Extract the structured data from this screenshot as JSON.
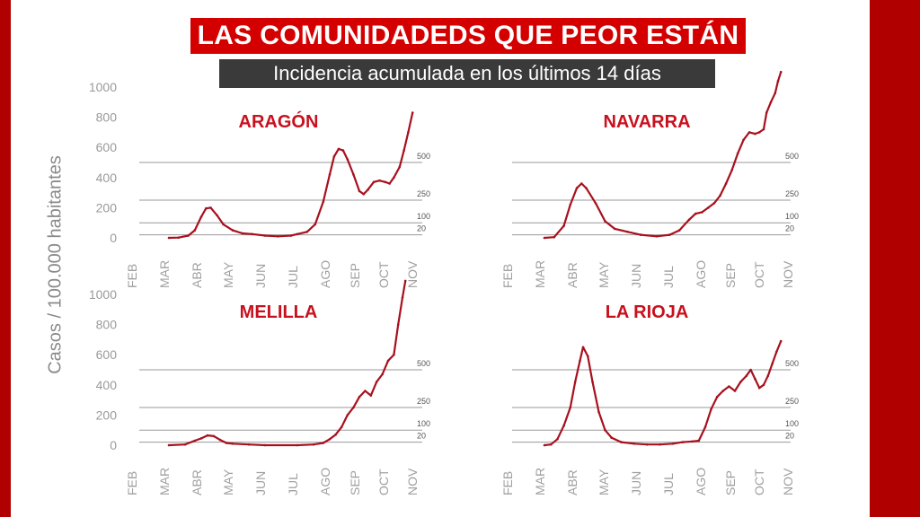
{
  "header": {
    "title": "LAS COMUNIDADEDS QUE PEOR ESTÁN",
    "subtitle": "Incidencia acumulada en los últimos 14 días"
  },
  "y_axis_label": "Casos / 100.000 habitantes",
  "colors": {
    "line": "#a8101e",
    "title_bg": "#d40000",
    "subtitle_bg": "#3a3a3a",
    "frame": "#b00000"
  },
  "chart_data": [
    {
      "type": "line",
      "title": "ARAGÓN",
      "x_ticks": [
        "FEB",
        "MAR",
        "ABR",
        "MAY",
        "JUN",
        "JUL",
        "AGO",
        "SEP",
        "OCT",
        "NOV"
      ],
      "y_ticks": [
        0,
        200,
        400,
        600,
        800,
        1000
      ],
      "reference_lines": [
        500,
        250,
        100,
        20
      ],
      "grid": false,
      "series": [
        {
          "values": [
            [
              1.0,
              0
            ],
            [
              1.3,
              2
            ],
            [
              1.6,
              15
            ],
            [
              1.8,
              50
            ],
            [
              2.0,
              140
            ],
            [
              2.15,
              195
            ],
            [
              2.3,
              200
            ],
            [
              2.5,
              150
            ],
            [
              2.7,
              90
            ],
            [
              3.0,
              50
            ],
            [
              3.3,
              30
            ],
            [
              3.6,
              25
            ],
            [
              4.0,
              15
            ],
            [
              4.4,
              10
            ],
            [
              4.8,
              15
            ],
            [
              5.0,
              25
            ],
            [
              5.3,
              40
            ],
            [
              5.55,
              90
            ],
            [
              5.8,
              240
            ],
            [
              6.0,
              420
            ],
            [
              6.15,
              540
            ],
            [
              6.3,
              590
            ],
            [
              6.45,
              580
            ],
            [
              6.6,
              520
            ],
            [
              6.8,
              420
            ],
            [
              7.0,
              310
            ],
            [
              7.15,
              290
            ],
            [
              7.3,
              320
            ],
            [
              7.5,
              370
            ],
            [
              7.7,
              380
            ],
            [
              7.9,
              370
            ],
            [
              8.05,
              360
            ],
            [
              8.2,
              400
            ],
            [
              8.4,
              470
            ],
            [
              8.55,
              580
            ],
            [
              8.7,
              700
            ],
            [
              8.85,
              830
            ]
          ]
        }
      ]
    },
    {
      "type": "line",
      "title": "NAVARRA",
      "x_ticks": [
        "FEB",
        "MAR",
        "ABR",
        "MAY",
        "JUN",
        "JUL",
        "AGO",
        "SEP",
        "OCT",
        "NOV"
      ],
      "y_ticks": [],
      "reference_lines": [
        500,
        250,
        100,
        20
      ],
      "grid": false,
      "series": [
        {
          "values": [
            [
              1.0,
              0
            ],
            [
              1.3,
              5
            ],
            [
              1.6,
              80
            ],
            [
              1.8,
              220
            ],
            [
              2.0,
              330
            ],
            [
              2.15,
              360
            ],
            [
              2.3,
              330
            ],
            [
              2.6,
              230
            ],
            [
              2.9,
              110
            ],
            [
              3.2,
              60
            ],
            [
              3.6,
              40
            ],
            [
              4.0,
              20
            ],
            [
              4.5,
              10
            ],
            [
              4.9,
              20
            ],
            [
              5.2,
              50
            ],
            [
              5.5,
              120
            ],
            [
              5.7,
              160
            ],
            [
              5.9,
              170
            ],
            [
              6.1,
              200
            ],
            [
              6.3,
              230
            ],
            [
              6.5,
              280
            ],
            [
              6.7,
              360
            ],
            [
              6.9,
              450
            ],
            [
              7.1,
              560
            ],
            [
              7.3,
              650
            ],
            [
              7.5,
              700
            ],
            [
              7.7,
              690
            ],
            [
              7.85,
              700
            ],
            [
              8.0,
              720
            ],
            [
              8.1,
              830
            ],
            [
              8.25,
              900
            ],
            [
              8.4,
              960
            ],
            [
              8.5,
              1040
            ],
            [
              8.6,
              1100
            ]
          ]
        }
      ]
    },
    {
      "type": "line",
      "title": "MELILLA",
      "x_ticks": [
        "FEB",
        "MAR",
        "ABR",
        "MAY",
        "JUN",
        "JUL",
        "AGO",
        "SEP",
        "OCT",
        "NOV"
      ],
      "y_ticks": [
        0,
        200,
        400,
        600,
        800,
        1000
      ],
      "reference_lines": [
        500,
        250,
        100,
        20
      ],
      "grid": false,
      "series": [
        {
          "values": [
            [
              1.0,
              0
            ],
            [
              1.5,
              5
            ],
            [
              1.8,
              30
            ],
            [
              2.0,
              45
            ],
            [
              2.2,
              65
            ],
            [
              2.4,
              60
            ],
            [
              2.6,
              35
            ],
            [
              2.8,
              15
            ],
            [
              3.0,
              10
            ],
            [
              3.5,
              5
            ],
            [
              4.0,
              0
            ],
            [
              5.0,
              0
            ],
            [
              5.5,
              5
            ],
            [
              5.8,
              15
            ],
            [
              6.0,
              40
            ],
            [
              6.2,
              70
            ],
            [
              6.4,
              120
            ],
            [
              6.6,
              200
            ],
            [
              6.8,
              250
            ],
            [
              7.0,
              320
            ],
            [
              7.2,
              360
            ],
            [
              7.4,
              330
            ],
            [
              7.6,
              420
            ],
            [
              7.8,
              470
            ],
            [
              8.0,
              560
            ],
            [
              8.2,
              600
            ],
            [
              8.35,
              800
            ],
            [
              8.5,
              980
            ],
            [
              8.6,
              1090
            ]
          ]
        }
      ]
    },
    {
      "type": "line",
      "title": "LA RIOJA",
      "x_ticks": [
        "FEB",
        "MAR",
        "ABR",
        "MAY",
        "JUN",
        "JUL",
        "AGO",
        "SEP",
        "OCT",
        "NOV"
      ],
      "y_ticks": [],
      "reference_lines": [
        500,
        250,
        100,
        20
      ],
      "grid": false,
      "series": [
        {
          "values": [
            [
              1.0,
              0
            ],
            [
              1.2,
              5
            ],
            [
              1.4,
              40
            ],
            [
              1.6,
              130
            ],
            [
              1.8,
              250
            ],
            [
              1.95,
              420
            ],
            [
              2.1,
              560
            ],
            [
              2.2,
              650
            ],
            [
              2.35,
              590
            ],
            [
              2.5,
              420
            ],
            [
              2.7,
              220
            ],
            [
              2.9,
              100
            ],
            [
              3.1,
              50
            ],
            [
              3.4,
              20
            ],
            [
              3.8,
              10
            ],
            [
              4.2,
              5
            ],
            [
              4.6,
              5
            ],
            [
              5.0,
              10
            ],
            [
              5.3,
              20
            ],
            [
              5.6,
              25
            ],
            [
              5.8,
              30
            ],
            [
              6.0,
              120
            ],
            [
              6.2,
              240
            ],
            [
              6.4,
              320
            ],
            [
              6.6,
              360
            ],
            [
              6.8,
              390
            ],
            [
              7.0,
              360
            ],
            [
              7.2,
              420
            ],
            [
              7.4,
              460
            ],
            [
              7.55,
              500
            ],
            [
              7.7,
              440
            ],
            [
              7.85,
              380
            ],
            [
              8.0,
              400
            ],
            [
              8.15,
              460
            ],
            [
              8.3,
              540
            ],
            [
              8.45,
              620
            ],
            [
              8.6,
              690
            ]
          ]
        }
      ]
    }
  ]
}
